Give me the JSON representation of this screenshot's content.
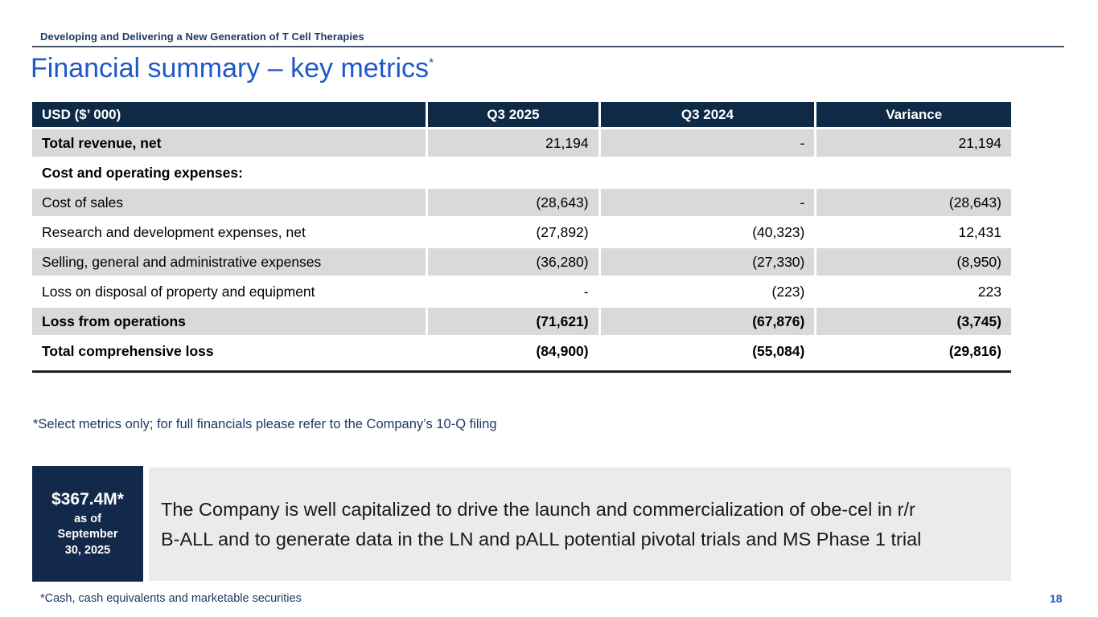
{
  "colors": {
    "header_navy": "#0F2A47",
    "callout_navy": "#13294B",
    "accent_blue": "#2058C8",
    "footnote_navy": "#1F3864",
    "row_gray": "#D9D9D9",
    "message_box_gray": "#EBEBEB"
  },
  "header": {
    "eyebrow": "Developing and Delivering a New Generation of T Cell Therapies",
    "title": "Financial summary – key metrics",
    "title_superscript": "*"
  },
  "table": {
    "columns": [
      "USD ($’ 000)",
      "Q3 2025",
      "Q3 2024",
      "Variance"
    ],
    "rows": [
      {
        "label": "Total revenue, net",
        "q3_2025": "21,194",
        "q3_2024": "-",
        "variance": "21,194"
      },
      {
        "label": "Cost and operating expenses:",
        "q3_2025": "",
        "q3_2024": "",
        "variance": ""
      },
      {
        "label": "Cost of sales",
        "q3_2025": "(28,643)",
        "q3_2024": "-",
        "variance": "(28,643)"
      },
      {
        "label": "Research and development expenses, net",
        "q3_2025": "(27,892)",
        "q3_2024": "(40,323)",
        "variance": "12,431"
      },
      {
        "label": "Selling, general and administrative expenses",
        "q3_2025": "(36,280)",
        "q3_2024": "(27,330)",
        "variance": "(8,950)"
      },
      {
        "label": "Loss on disposal of property and equipment",
        "q3_2025": "-",
        "q3_2024": "(223)",
        "variance": "223"
      },
      {
        "label": "Loss from operations",
        "q3_2025": "(71,621)",
        "q3_2024": "(67,876)",
        "variance": "(3,745)"
      },
      {
        "label": "Total comprehensive loss",
        "q3_2025": "(84,900)",
        "q3_2024": "(55,084)",
        "variance": "(29,816)"
      }
    ]
  },
  "footnotes": {
    "metrics_note": "*Select metrics only; for full financials please refer to the Company’s 10-Q filing",
    "cash_note": "*Cash, cash equivalents and marketable securities"
  },
  "callout": {
    "amount": "$367.4M*",
    "as_of": [
      "as of",
      "September",
      "30, 2025"
    ],
    "message": [
      "The Company is well capitalized to drive the launch and commercialization of obe-cel in r/r",
      "B-ALL and to generate data in the LN and pALL potential pivotal trials and MS Phase 1 trial"
    ]
  },
  "page_number": "18"
}
